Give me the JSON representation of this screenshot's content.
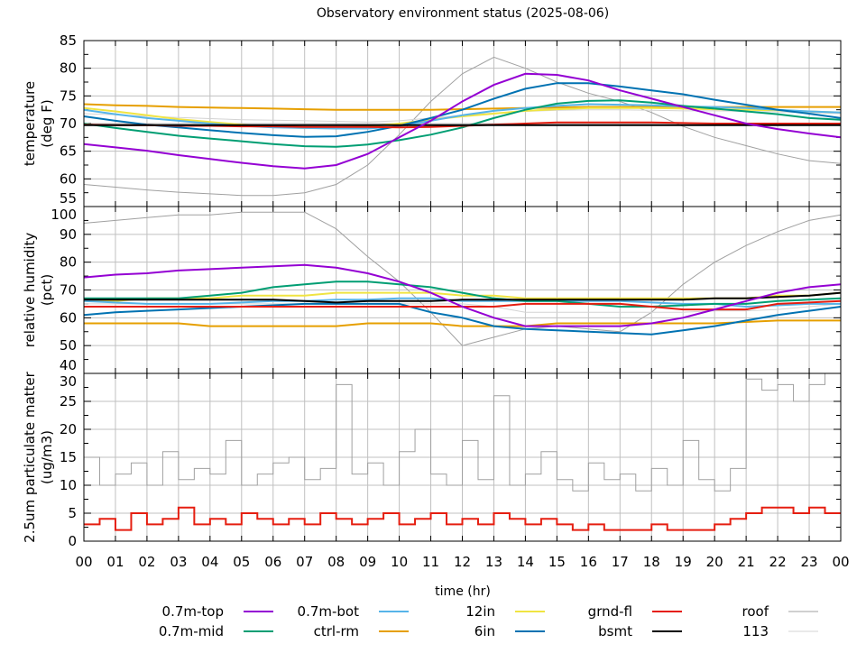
{
  "title": "Observatory environment status (2025-08-06)",
  "colors": {
    "0.7m-top": "#9400d3",
    "0.7m-mid": "#009e73",
    "0.7m-bot": "#56b4e9",
    "ctrl-rm": "#e69f00",
    "12in": "#f0e442",
    "6in": "#0072b2",
    "grnd-fl": "#e51e10",
    "bsmt": "#000000",
    "roof": "#a0a0a0",
    "113": "#d3d3d3"
  },
  "chart_data": [
    {
      "type": "line",
      "ylabel": [
        "temperature",
        "(deg F)"
      ],
      "xlim": [
        0,
        24
      ],
      "ylim": [
        55,
        85
      ],
      "yticks": [
        55,
        60,
        65,
        70,
        75,
        80,
        85
      ],
      "grid": true,
      "x": [
        0,
        1,
        2,
        3,
        4,
        5,
        6,
        7,
        8,
        9,
        10,
        11,
        12,
        13,
        14,
        15,
        16,
        17,
        18,
        19,
        20,
        21,
        22,
        23,
        24
      ],
      "series": [
        {
          "name": "roof",
          "values": [
            59,
            58.5,
            58,
            57.6,
            57.3,
            57,
            57,
            57.5,
            59,
            62.5,
            68,
            74,
            79,
            82,
            80,
            77.5,
            75.5,
            74,
            72,
            69.5,
            67.5,
            66,
            64.5,
            63.3,
            62.8
          ]
        },
        {
          "name": "113",
          "values": [
            71.8,
            71.6,
            71.3,
            71.1,
            70.9,
            70.7,
            70.6,
            70.5,
            70.4,
            70.3,
            70.5,
            71,
            71.5,
            71.9,
            72.2,
            72.4,
            72.5,
            72.5,
            72.4,
            72.3,
            72.3,
            72.2,
            72.1,
            72,
            71.8
          ]
        },
        {
          "name": "ctrl-rm",
          "values": [
            73.5,
            73.3,
            73.2,
            73,
            72.9,
            72.8,
            72.7,
            72.6,
            72.5,
            72.5,
            72.5,
            72.5,
            72.6,
            72.7,
            72.8,
            72.9,
            73,
            73,
            73,
            73,
            73,
            73,
            73,
            73,
            73
          ]
        },
        {
          "name": "12in",
          "values": [
            72.8,
            72.2,
            71.5,
            70.8,
            70.3,
            69.8,
            69.4,
            69.2,
            69.3,
            69.5,
            70,
            70.7,
            71.3,
            71.8,
            72.3,
            72.6,
            72.8,
            72.8,
            72.8,
            72.7,
            72.6,
            72.5,
            72.4,
            72.2,
            72
          ]
        },
        {
          "name": "0.7m-bot",
          "values": [
            72.5,
            71.7,
            71,
            70.5,
            70,
            69.6,
            69.3,
            69.2,
            69.1,
            69.1,
            69.5,
            70.5,
            71.5,
            72.3,
            72.8,
            73.2,
            73.5,
            73.4,
            73.3,
            73.1,
            73,
            72.8,
            72.5,
            72.2,
            72
          ]
        },
        {
          "name": "0.7m-mid",
          "values": [
            70,
            69.2,
            68.5,
            67.8,
            67.3,
            66.8,
            66.3,
            65.9,
            65.8,
            66.2,
            67,
            68,
            69.3,
            71,
            72.5,
            73.6,
            74.1,
            74.2,
            73.8,
            73.2,
            72.7,
            72.2,
            71.7,
            71,
            70.7
          ]
        },
        {
          "name": "6in",
          "values": [
            71.3,
            70.5,
            69.8,
            69.3,
            68.8,
            68.3,
            67.9,
            67.6,
            67.7,
            68.5,
            69.6,
            71,
            72.5,
            74.5,
            76.3,
            77.3,
            77.3,
            76.7,
            76,
            75.3,
            74.3,
            73.4,
            72.5,
            71.8,
            71
          ]
        },
        {
          "name": "grnd-fl",
          "values": [
            69.8,
            69.7,
            69.7,
            69.6,
            69.6,
            69.5,
            69.5,
            69.4,
            69.4,
            69.4,
            69.3,
            69.4,
            69.6,
            69.8,
            70,
            70.2,
            70.2,
            70.2,
            70.2,
            70.1,
            70,
            70,
            70,
            70,
            70
          ]
        },
        {
          "name": "bsmt",
          "values": [
            69.7,
            69.7,
            69.7,
            69.7,
            69.7,
            69.7,
            69.7,
            69.7,
            69.7,
            69.7,
            69.7,
            69.7,
            69.7,
            69.7,
            69.7,
            69.7,
            69.7,
            69.7,
            69.7,
            69.7,
            69.7,
            69.7,
            69.7,
            69.7,
            69.7
          ]
        },
        {
          "name": "0.7m-top",
          "values": [
            66.3,
            65.7,
            65.1,
            64.3,
            63.6,
            62.9,
            62.3,
            61.9,
            62.5,
            64.5,
            67.5,
            70.5,
            74,
            77,
            79,
            78.8,
            77.8,
            76,
            74.5,
            73,
            71.5,
            70,
            69,
            68.2,
            67.5
          ]
        }
      ]
    },
    {
      "type": "line",
      "ylabel": [
        "relative humidity",
        "(pct)"
      ],
      "xlim": [
        0,
        24
      ],
      "ylim": [
        40,
        100
      ],
      "yticks": [
        40,
        50,
        60,
        70,
        80,
        90,
        100
      ],
      "grid": true,
      "x": [
        0,
        1,
        2,
        3,
        4,
        5,
        6,
        7,
        8,
        9,
        10,
        11,
        12,
        13,
        14,
        15,
        16,
        17,
        18,
        19,
        20,
        21,
        22,
        23,
        24
      ],
      "series": [
        {
          "name": "roof",
          "values": [
            94,
            95,
            96,
            97,
            97,
            98,
            98,
            98,
            92,
            82,
            73,
            62,
            50,
            53,
            56,
            57,
            56,
            55,
            62,
            72,
            80,
            86,
            91,
            95,
            97
          ]
        },
        {
          "name": "113",
          "values": [
            65,
            65,
            65,
            65,
            65,
            65,
            65,
            65,
            65,
            65,
            65,
            65,
            65,
            64,
            62,
            62,
            62,
            62,
            62,
            62,
            62.5,
            62.5,
            63,
            64,
            65
          ]
        },
        {
          "name": "ctrl-rm",
          "values": [
            58,
            58,
            58,
            58,
            57,
            57,
            57,
            57,
            57,
            58,
            58,
            58,
            57,
            57,
            57,
            58,
            58,
            58,
            58,
            58,
            58,
            58.5,
            59,
            59,
            59
          ]
        },
        {
          "name": "12in",
          "values": [
            66,
            66,
            67,
            67,
            67,
            68,
            68,
            68,
            69,
            69,
            69,
            69,
            68,
            68,
            67,
            67,
            67,
            67,
            67,
            67,
            67,
            67,
            68,
            68,
            69
          ]
        },
        {
          "name": "0.7m-bot",
          "values": [
            66,
            65.5,
            65,
            65,
            65,
            65.5,
            66,
            66,
            66.5,
            66.5,
            67,
            67,
            66,
            66,
            66,
            66,
            66,
            66,
            65.5,
            65,
            65,
            64,
            64.5,
            65,
            65
          ]
        },
        {
          "name": "0.7m-mid",
          "values": [
            67,
            67,
            67,
            67,
            68,
            69,
            71,
            72,
            73,
            73,
            72,
            71,
            69,
            67,
            66,
            66,
            65,
            64,
            64,
            64.5,
            65,
            65,
            66,
            66.5,
            67
          ]
        },
        {
          "name": "6in",
          "values": [
            61,
            62,
            62.5,
            63,
            63.5,
            64,
            64.5,
            65,
            65,
            65,
            65,
            62,
            60,
            57,
            56,
            55.5,
            55,
            54.5,
            54,
            55.5,
            57,
            59,
            61,
            62.5,
            64
          ]
        },
        {
          "name": "grnd-fl",
          "values": [
            64,
            64,
            64,
            64,
            64,
            64,
            64,
            64,
            64,
            64,
            64,
            64,
            64,
            64,
            65,
            65,
            65,
            65,
            64,
            63,
            63,
            63,
            65,
            65.5,
            66
          ]
        },
        {
          "name": "bsmt",
          "values": [
            66.5,
            66.5,
            66.5,
            66.5,
            66.5,
            66.5,
            66.5,
            66,
            65.5,
            66,
            66,
            66,
            66.5,
            66.5,
            66.5,
            66.5,
            66.5,
            66.5,
            66.5,
            66.5,
            67,
            67,
            67.5,
            68,
            69
          ]
        },
        {
          "name": "0.7m-top",
          "values": [
            74.5,
            75.5,
            76,
            77,
            77.5,
            78,
            78.5,
            79,
            78,
            76,
            73,
            69,
            64,
            60,
            57,
            57,
            57,
            57,
            58,
            60,
            63,
            66,
            69,
            71,
            72
          ]
        }
      ]
    },
    {
      "type": "line",
      "ylabel": [
        "2.5um particulate matter",
        "(ug/m3)"
      ],
      "xlabel": "time (hr)",
      "xlim": [
        0,
        24
      ],
      "ylim": [
        0,
        30
      ],
      "yticks": [
        0,
        5,
        10,
        15,
        20,
        25,
        30
      ],
      "xticks": [
        "00",
        "01",
        "02",
        "03",
        "04",
        "05",
        "06",
        "07",
        "08",
        "09",
        "10",
        "11",
        "12",
        "13",
        "14",
        "15",
        "16",
        "17",
        "18",
        "19",
        "20",
        "21",
        "22",
        "23",
        "00"
      ],
      "grid": true,
      "x": [
        0,
        0.5,
        1,
        1.5,
        2,
        2.5,
        3,
        3.5,
        4,
        4.5,
        5,
        5.5,
        6,
        6.5,
        7,
        7.5,
        8,
        8.5,
        9,
        9.5,
        10,
        10.5,
        11,
        11.5,
        12,
        12.5,
        13,
        13.5,
        14,
        14.5,
        15,
        15.5,
        16,
        16.5,
        17,
        17.5,
        18,
        18.5,
        19,
        19.5,
        20,
        20.5,
        21,
        21.5,
        22,
        22.5,
        23,
        23.5,
        24
      ],
      "series": [
        {
          "name": "roof",
          "values": [
            15,
            10,
            12,
            14,
            10,
            16,
            11,
            13,
            12,
            18,
            10,
            12,
            14,
            15,
            11,
            13,
            28,
            12,
            14,
            10,
            16,
            20,
            12,
            10,
            18,
            11,
            26,
            10,
            12,
            16,
            11,
            9,
            14,
            11,
            12,
            9,
            13,
            10,
            18,
            11,
            9,
            13,
            29,
            27,
            28,
            25,
            28,
            30,
            21
          ]
        },
        {
          "name": "grnd-fl",
          "values": [
            3,
            4,
            2,
            5,
            3,
            4,
            6,
            3,
            4,
            3,
            5,
            4,
            3,
            4,
            3,
            5,
            4,
            3,
            4,
            5,
            3,
            4,
            5,
            3,
            4,
            3,
            5,
            4,
            3,
            4,
            3,
            2,
            3,
            2,
            2,
            2,
            3,
            2,
            2,
            2,
            3,
            4,
            5,
            6,
            6,
            5,
            6,
            5,
            5
          ]
        }
      ]
    }
  ],
  "legend": {
    "placement": "bottom",
    "entries": [
      "0.7m-top",
      "0.7m-mid",
      "0.7m-bot",
      "ctrl-rm",
      "12in",
      "6in",
      "grnd-fl",
      "bsmt",
      "roof",
      "113"
    ]
  }
}
